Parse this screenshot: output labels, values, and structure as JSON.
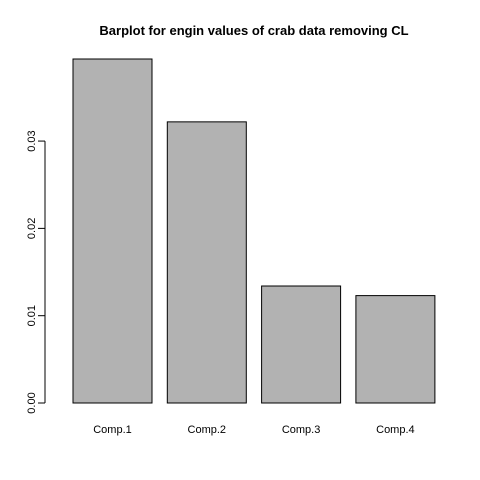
{
  "chart_data": {
    "type": "bar",
    "title": "Barplot for engin values of crab data removing CL",
    "xlabel": "",
    "ylabel": "",
    "categories": [
      "Comp.1",
      "Comp.2",
      "Comp.3",
      "Comp.4"
    ],
    "values": [
      0.0394,
      0.0322,
      0.0134,
      0.0123
    ],
    "ylim": [
      0,
      0.0394
    ],
    "yticks": [
      0.0,
      0.01,
      0.02,
      0.03
    ],
    "ytick_labels": [
      "0.00",
      "0.01",
      "0.02",
      "0.03"
    ],
    "bar_color": "#b2b2b2",
    "grid": false,
    "legend": "none"
  }
}
